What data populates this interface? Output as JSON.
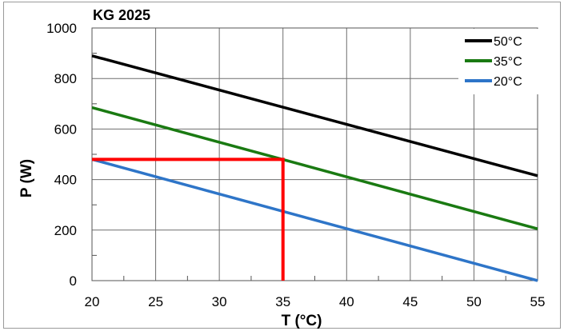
{
  "chart_data": {
    "type": "line",
    "title": "KG 2025",
    "xlabel": "T (°C)",
    "ylabel": "P (W)",
    "xlim": [
      20,
      55
    ],
    "ylim": [
      0,
      1000
    ],
    "x_ticks": [
      "20",
      "25",
      "30",
      "35",
      "40",
      "45",
      "50",
      "55"
    ],
    "y_ticks": [
      "0",
      "200",
      "400",
      "600",
      "800",
      "1000"
    ],
    "grid": true,
    "legend_position": "top-right",
    "series": [
      {
        "name": "50°C",
        "color": "#000000",
        "x": [
          20,
          55
        ],
        "y": [
          890,
          415
        ]
      },
      {
        "name": "35°C",
        "color": "#1a7a12",
        "x": [
          20,
          55
        ],
        "y": [
          685,
          205
        ]
      },
      {
        "name": "20°C",
        "color": "#2e75c8",
        "x": [
          20,
          55
        ],
        "y": [
          480,
          0
        ]
      }
    ],
    "annotation": {
      "color": "#ff0000",
      "points": [
        [
          20,
          480
        ],
        [
          35,
          480
        ],
        [
          35,
          0
        ]
      ]
    }
  }
}
